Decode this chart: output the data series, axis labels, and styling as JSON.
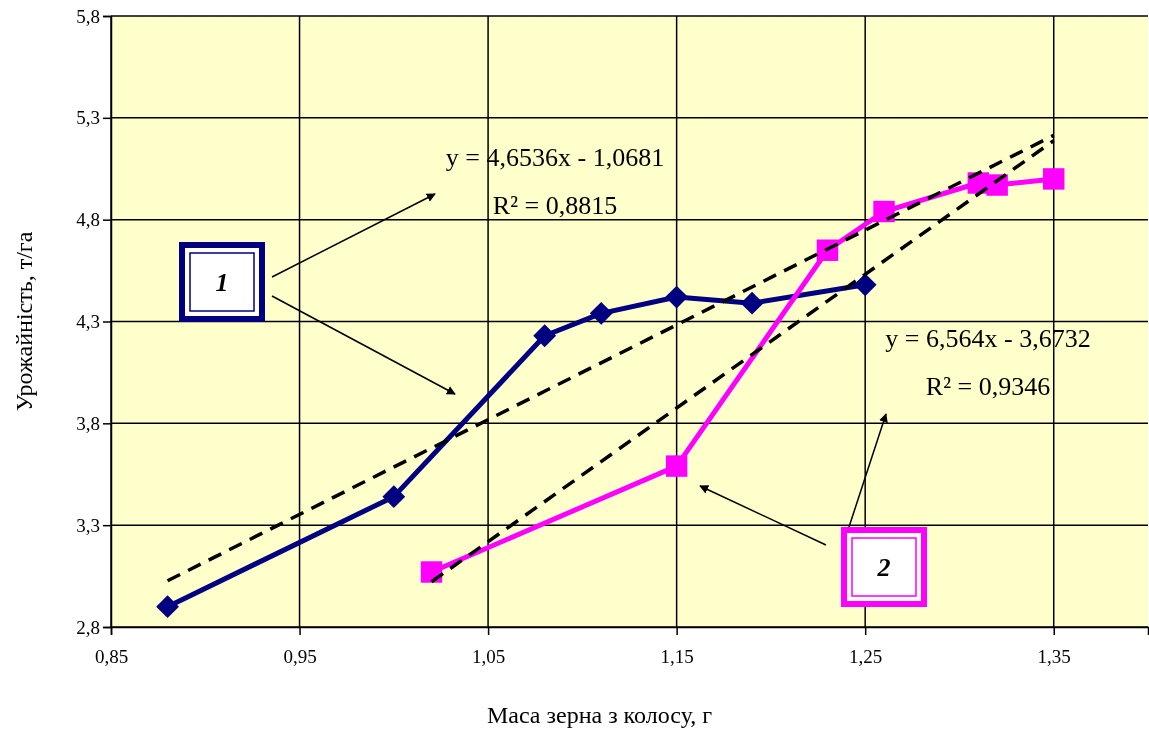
{
  "chart_data": {
    "type": "line",
    "xlabel": "Маса зерна з колосу, г",
    "ylabel": "Урожайність, т/га",
    "xlim": [
      0.85,
      1.4
    ],
    "xticks": [
      {
        "value": 0.85,
        "label": "0,85"
      },
      {
        "value": 0.95,
        "label": "0,95"
      },
      {
        "value": 1.05,
        "label": "1,05"
      },
      {
        "value": 1.15,
        "label": "1,15"
      },
      {
        "value": 1.25,
        "label": "1,25"
      },
      {
        "value": 1.35,
        "label": "1,35"
      }
    ],
    "ylim": [
      2.8,
      5.8
    ],
    "yticks": [
      {
        "value": 2.8,
        "label": "2,8"
      },
      {
        "value": 3.3,
        "label": "3,3"
      },
      {
        "value": 3.8,
        "label": "3,8"
      },
      {
        "value": 4.3,
        "label": "4,3"
      },
      {
        "value": 4.8,
        "label": "4,8"
      },
      {
        "value": 5.3,
        "label": "5,3"
      },
      {
        "value": 5.8,
        "label": "5,8"
      }
    ],
    "grid": true,
    "series": [
      {
        "name": "1",
        "color": "#000080",
        "marker": "diamond",
        "x": [
          0.88,
          1.0,
          1.08,
          1.11,
          1.15,
          1.19,
          1.25
        ],
        "values": [
          2.9,
          3.44,
          4.23,
          4.34,
          4.42,
          4.39,
          4.48
        ]
      },
      {
        "name": "2",
        "color": "#ff00ff",
        "marker": "square",
        "x": [
          1.02,
          1.15,
          1.23,
          1.26,
          1.31,
          1.32,
          1.35
        ],
        "values": [
          3.07,
          3.59,
          4.65,
          4.84,
          4.98,
          4.97,
          5.0
        ]
      },
      {
        "type": "line",
        "color": "#000000",
        "marker": "none",
        "line_style": "dashed",
        "x": [
          0.88,
          1.35
        ],
        "values": [
          3.027,
          5.214
        ]
      },
      {
        "type": "line",
        "color": "#000000",
        "marker": "none",
        "line_style": "dashed",
        "x": [
          1.02,
          1.35
        ],
        "values": [
          3.022,
          5.188
        ]
      }
    ],
    "annotations": [
      "y = 4,6536x - 1,0681",
      "R² = 0,8815",
      "y = 6,564x - 3,6732",
      "R² = 0,9346"
    ]
  }
}
